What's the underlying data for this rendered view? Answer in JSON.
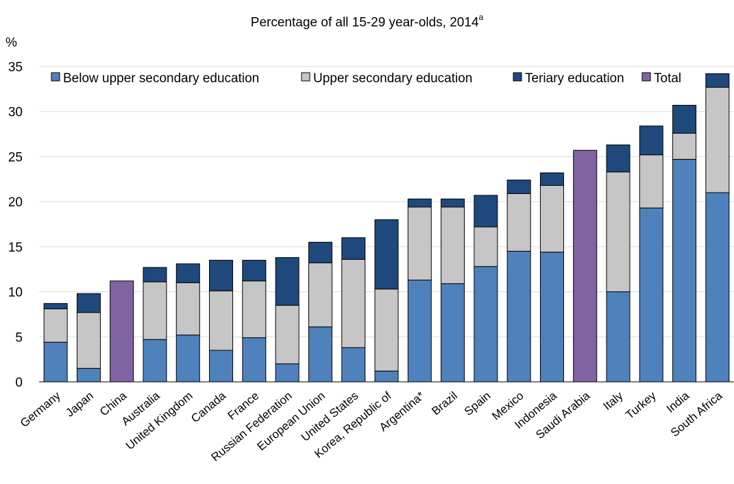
{
  "chart_data": {
    "type": "bar",
    "stacked": true,
    "title": "Percentage of all 15-29 year-olds, 2014",
    "title_superscript": "a",
    "ylabel": "%",
    "xlabel": "",
    "ylim": [
      0,
      35
    ],
    "yticks": [
      0,
      5,
      10,
      15,
      20,
      25,
      30,
      35
    ],
    "grid": true,
    "legend_position": "top",
    "categories": [
      "Germany",
      "Japan",
      "China",
      "Australia",
      "United Kingdom",
      "Canada",
      "France",
      "Russian Federation",
      "European Union",
      "United States",
      "Korea, Republic of",
      "Argentina*",
      "Brazil",
      "Spain",
      "Mexico",
      "Indonesia",
      "Saudi Arabia",
      "Italy",
      "Turkey",
      "India",
      "South Africa"
    ],
    "series": [
      {
        "name": "Below upper secondary education",
        "color": "#4f81bd",
        "values": [
          4.4,
          1.5,
          null,
          4.7,
          5.2,
          3.5,
          4.9,
          2.0,
          6.1,
          3.8,
          1.2,
          11.3,
          10.9,
          12.8,
          14.5,
          14.4,
          null,
          10.0,
          19.3,
          24.7,
          21.0
        ]
      },
      {
        "name": "Upper secondary education",
        "color": "#c6c6c6",
        "values": [
          3.7,
          6.2,
          null,
          6.4,
          5.8,
          6.6,
          6.3,
          6.5,
          7.1,
          9.8,
          9.1,
          8.1,
          8.5,
          4.4,
          6.4,
          7.4,
          null,
          13.3,
          5.9,
          2.9,
          11.7
        ]
      },
      {
        "name": "Teriary education",
        "color": "#1f497d",
        "values": [
          0.6,
          2.1,
          null,
          1.6,
          2.1,
          3.4,
          2.3,
          5.3,
          2.3,
          2.4,
          7.7,
          0.9,
          0.9,
          3.5,
          1.5,
          1.4,
          null,
          3.0,
          3.2,
          3.1,
          1.5
        ]
      },
      {
        "name": "Total",
        "color": "#8064a2",
        "values": [
          null,
          null,
          11.2,
          null,
          null,
          null,
          null,
          null,
          null,
          null,
          null,
          null,
          null,
          null,
          null,
          null,
          25.7,
          null,
          null,
          null,
          null
        ]
      }
    ]
  }
}
